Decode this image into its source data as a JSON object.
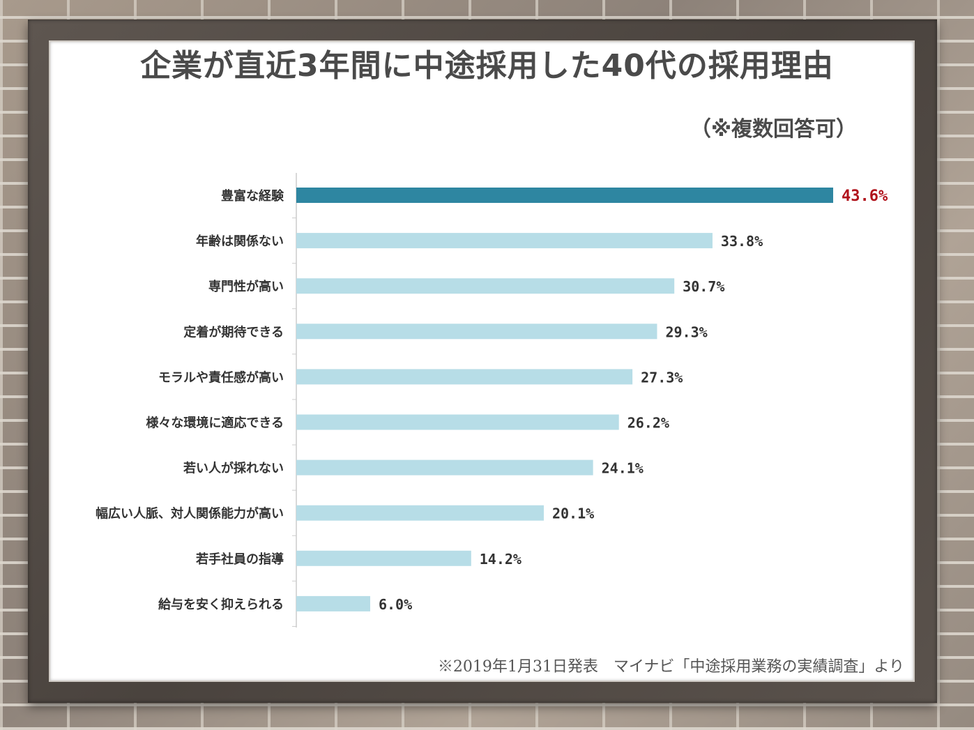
{
  "header": {
    "title": "企業が直近3年間に中途採用した40代の採用理由",
    "subtitle": "（※複数回答可）"
  },
  "footer": {
    "source": "※2019年1月31日発表　マイナビ「中途採用業務の実績調査」より"
  },
  "colors": {
    "highlight_bar": "#2e86a1",
    "bar": "#b7dde7",
    "highlight_label": "#b0121b",
    "label": "#333333",
    "axis": "#cccccc"
  },
  "chart_data": {
    "type": "bar",
    "orientation": "horizontal",
    "categories": [
      "豊富な経験",
      "年齢は関係ない",
      "専門性が高い",
      "定着が期待できる",
      "モラルや責任感が高い",
      "様々な環境に適応できる",
      "若い人が採れない",
      "幅広い人脈、対人関係能力が高い",
      "若手社員の指導",
      "給与を安く抑えられる"
    ],
    "values": [
      43.6,
      33.8,
      30.7,
      29.3,
      27.3,
      26.2,
      24.1,
      20.1,
      14.2,
      6.0
    ],
    "value_labels": [
      "43.6%",
      "33.8%",
      "30.7%",
      "29.3%",
      "27.3%",
      "26.2%",
      "24.1%",
      "20.1%",
      "14.2%",
      "6.0%"
    ],
    "highlight_index": 0,
    "unit": "%",
    "xlim": [
      0,
      43.6
    ],
    "grid": false,
    "legend": "none"
  }
}
